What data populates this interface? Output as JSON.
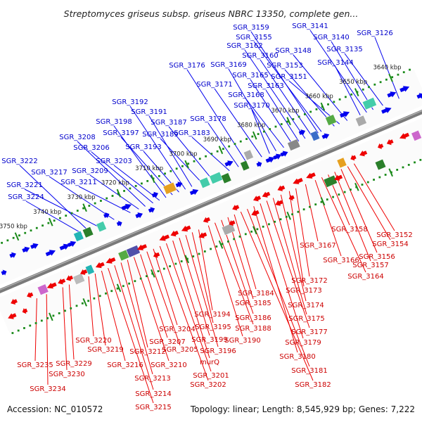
{
  "title": "Streptomyces griseus subsp. griseus NBRC 13350, complete gen...",
  "footer": {
    "accession": "Accession: NC_010572",
    "info": "Topology: linear; Length: 8,545,929 bp; Genes: 7,222"
  },
  "colors": {
    "forward": "#0000ee",
    "reverse": "#ee0000",
    "backbone": "#7a7a7a",
    "ruler": "#1a8a1a",
    "forward_label": "#0000cc",
    "reverse_label": "#cc0000"
  },
  "ticks": [
    "3640 kbp",
    "3650 kbp",
    "3660 kbp",
    "3670 kbp",
    "3680 kbp",
    "3690 kbp",
    "3700 kbp",
    "3710 kbp",
    "3720 kbp",
    "3730 kbp",
    "3740 kbp",
    "3750 kbp"
  ],
  "forward_labels": [
    "SGR_3126",
    "SGR_3135",
    "SGR_3140",
    "SGR_3141",
    "SGR_3144",
    "SGR_3148",
    "SGR_3151",
    "SGR_3153",
    "SGR_3155",
    "SGR_3159",
    "SGR_3160",
    "SGR_3162",
    "SGR_3163",
    "SGR_3165",
    "SGR_3168",
    "SGR_3169",
    "SGR_3170",
    "SGR_3171",
    "SGR_3176",
    "SGR_3178",
    "SGR_3183",
    "SGR_3187",
    "SGR_3189",
    "SGR_3191",
    "SGR_3192",
    "SGR_3193",
    "SGR_3197",
    "SGR_3198",
    "SGR_3203",
    "SGR_3206",
    "SGR_3208",
    "SGR_3209",
    "SGR_3211",
    "SGR_3217",
    "SGR_3221",
    "SGR_3222",
    "SGR_3224"
  ],
  "reverse_labels": [
    "SGR_3152",
    "SGR_3154",
    "SGR_3156",
    "SGR_3157",
    "SGR_3158",
    "SGR_3164",
    "SGR_3166",
    "SGR_3167",
    "SGR_3172",
    "SGR_3173",
    "SGR_3174",
    "SGR_3175",
    "SGR_3177",
    "SGR_3179",
    "SGR_3180",
    "SGR_3181",
    "SGR_3182",
    "SGR_3184",
    "SGR_3185",
    "SGR_3186",
    "SGR_3188",
    "SGR_3190",
    "SGR_3194",
    "SGR_3195",
    "SGR_3196",
    "SGR_3199",
    "murQ",
    "SGR_3201",
    "SGR_3202",
    "SGR_3204",
    "SGR_3205",
    "SGR_3207",
    "SGR_3210",
    "SGR_3212",
    "SGR_3213",
    "SGR_3214",
    "SGR_3215",
    "SGR_3216",
    "SGR_3219",
    "SGR_3220",
    "SGR_3229",
    "SGR_3230",
    "SGR_3234",
    "SGR_3235"
  ]
}
